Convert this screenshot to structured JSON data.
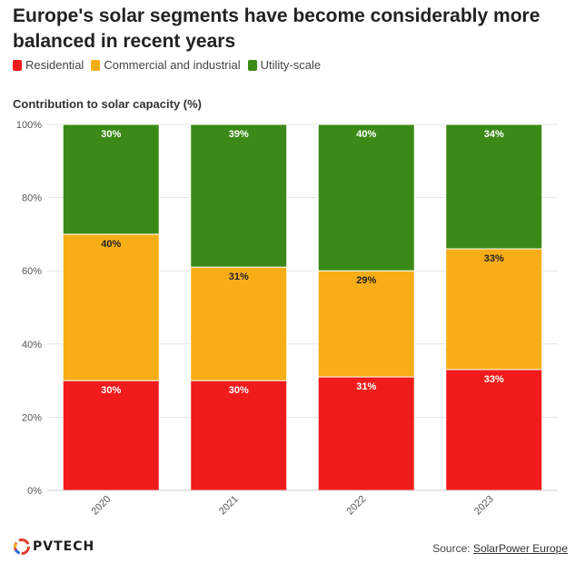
{
  "title": "Europe's solar segments have become considerably more balanced in recent years",
  "legend": [
    {
      "label": "Residential",
      "color": "#f21b1b"
    },
    {
      "label": "Commercial and industrial",
      "color": "#f7ae16"
    },
    {
      "label": "Utility-scale",
      "color": "#3b8a17"
    }
  ],
  "footer": {
    "logo_text": "PVTECH",
    "source_label": "Source:",
    "source_link": "SolarPower Europe"
  },
  "chart_data": {
    "type": "bar",
    "stacked": true,
    "ylabel": "Contribution to solar capacity (%)",
    "ylim": [
      0,
      100
    ],
    "yticks": [
      "0%",
      "20%",
      "40%",
      "60%",
      "80%",
      "100%"
    ],
    "categories": [
      "2020",
      "2021",
      "2022",
      "2023"
    ],
    "series": [
      {
        "name": "Residential",
        "color": "#f21b1b",
        "values": [
          30,
          30,
          31,
          33
        ],
        "labels": [
          "30%",
          "30%",
          "31%",
          "33%"
        ],
        "label_color": "#ffffff"
      },
      {
        "name": "Commercial and industrial",
        "color": "#f7ae16",
        "values": [
          40,
          31,
          29,
          33
        ],
        "labels": [
          "40%",
          "31%",
          "29%",
          "33%"
        ],
        "label_color": "#222222"
      },
      {
        "name": "Utility-scale",
        "color": "#3b8a17",
        "values": [
          30,
          39,
          40,
          34
        ],
        "labels": [
          "30%",
          "39%",
          "40%",
          "34%"
        ],
        "label_color": "#ffffff"
      }
    ],
    "grid": true,
    "legend_position": "top-left"
  }
}
